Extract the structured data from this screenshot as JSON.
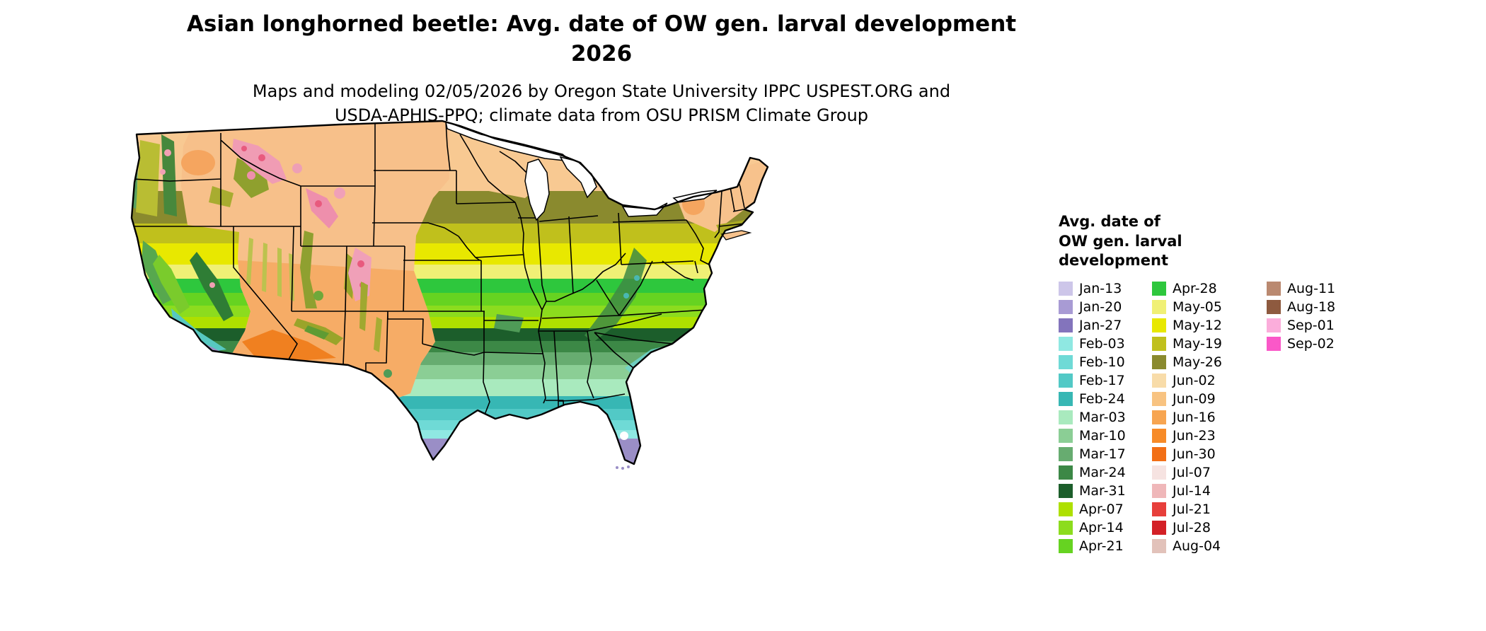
{
  "header": {
    "title_line1": "Asian longhorned beetle: Avg. date of OW gen. larval development",
    "title_line2": "2026",
    "subtitle_line1": "Maps and modeling 02/05/2026 by Oregon State University IPPC USPEST.ORG and",
    "subtitle_line2": "USDA-APHIS-PPQ; climate data from OSU PRISM Climate Group"
  },
  "legend": {
    "title_line1": "Avg. date of",
    "title_line2": "OW gen. larval",
    "title_line3": "development",
    "columns": [
      [
        {
          "label": "Jan-13",
          "color": "#CDC6E9"
        },
        {
          "label": "Jan-20",
          "color": "#A89BD4"
        },
        {
          "label": "Jan-27",
          "color": "#8374BC"
        },
        {
          "label": "Feb-03",
          "color": "#8FE8E2"
        },
        {
          "label": "Feb-10",
          "color": "#6FDAD6"
        },
        {
          "label": "Feb-17",
          "color": "#52C9C6"
        },
        {
          "label": "Feb-24",
          "color": "#37B7B4"
        },
        {
          "label": "Mar-03",
          "color": "#A9EABE"
        },
        {
          "label": "Mar-10",
          "color": "#8BCE95"
        },
        {
          "label": "Mar-17",
          "color": "#67AC70"
        },
        {
          "label": "Mar-24",
          "color": "#3C8846"
        },
        {
          "label": "Mar-31",
          "color": "#1C5E2B"
        },
        {
          "label": "Apr-07",
          "color": "#AEE000"
        },
        {
          "label": "Apr-14",
          "color": "#8CDC1E"
        },
        {
          "label": "Apr-21",
          "color": "#66D321"
        }
      ],
      [
        {
          "label": "Apr-28",
          "color": "#2EC73D"
        },
        {
          "label": "May-05",
          "color": "#F0F075"
        },
        {
          "label": "May-12",
          "color": "#E8E800"
        },
        {
          "label": "May-19",
          "color": "#C0C01C"
        },
        {
          "label": "May-26",
          "color": "#8A8A2E"
        },
        {
          "label": "Jun-02",
          "color": "#F8DCA9"
        },
        {
          "label": "Jun-09",
          "color": "#F8C381"
        },
        {
          "label": "Jun-16",
          "color": "#F7A551"
        },
        {
          "label": "Jun-23",
          "color": "#F78B28"
        },
        {
          "label": "Jun-30",
          "color": "#F26F16"
        },
        {
          "label": "Jul-07",
          "color": "#F6E3E1"
        },
        {
          "label": "Jul-14",
          "color": "#EFB7B9"
        },
        {
          "label": "Jul-21",
          "color": "#E73F3B"
        },
        {
          "label": "Jul-28",
          "color": "#D32026"
        },
        {
          "label": "Aug-04",
          "color": "#E2C2BA"
        }
      ],
      [
        {
          "label": "Aug-11",
          "color": "#BA8970"
        },
        {
          "label": "Aug-18",
          "color": "#8E5A3F"
        },
        {
          "label": "Sep-01",
          "color": "#FBADDB"
        },
        {
          "label": "Sep-02",
          "color": "#FA58C8"
        }
      ]
    ]
  },
  "chart_data": {
    "type": "heatmap",
    "title": "Asian longhorned beetle: Avg. date of OW gen. larval development 2026",
    "region": "Continental United States raster map with state boundaries",
    "legend_title": "Avg. date of OW gen. larval development",
    "legend_position": "right",
    "categories": [
      "Jan-13",
      "Jan-20",
      "Jan-27",
      "Feb-03",
      "Feb-10",
      "Feb-17",
      "Feb-24",
      "Mar-03",
      "Mar-10",
      "Mar-17",
      "Mar-24",
      "Mar-31",
      "Apr-07",
      "Apr-14",
      "Apr-21",
      "Apr-28",
      "May-05",
      "May-12",
      "May-19",
      "May-26",
      "Jun-02",
      "Jun-09",
      "Jun-16",
      "Jun-23",
      "Jun-30",
      "Jul-07",
      "Jul-14",
      "Jul-21",
      "Jul-28",
      "Aug-04",
      "Aug-11",
      "Aug-18",
      "Sep-01",
      "Sep-02"
    ],
    "colors": [
      "#CDC6E9",
      "#A89BD4",
      "#8374BC",
      "#8FE8E2",
      "#6FDAD6",
      "#52C9C6",
      "#37B7B4",
      "#A9EABE",
      "#8BCE95",
      "#67AC70",
      "#3C8846",
      "#1C5E2B",
      "#AEE000",
      "#8CDC1E",
      "#66D321",
      "#2EC73D",
      "#F0F075",
      "#E8E800",
      "#C0C01C",
      "#8A8A2E",
      "#F8DCA9",
      "#F8C381",
      "#F7A551",
      "#F78B28",
      "#F26F16",
      "#F6E3E1",
      "#EFB7B9",
      "#E73F3B",
      "#D32026",
      "#E2C2BA",
      "#BA8970",
      "#8E5A3F",
      "#FBADDB",
      "#FA58C8"
    ],
    "spatial_pattern": "South-to-north gradient of average dates: January (purples) in far south Texas and south Florida; February (teals) along the Gulf Coast and coastal/central Florida; March (mint to dark greens) across the South; April (bright greens and chartreuse) through the mid-South; May (yellows and olive) across the Midwest, Ohio Valley and Mid-Atlantic; June (peach/orange) across the northern tier and most of the interior West; July through September (pinks, reds, browns) only in high mountain areas of the Rockies, Cascades and Sierra Nevada."
  }
}
